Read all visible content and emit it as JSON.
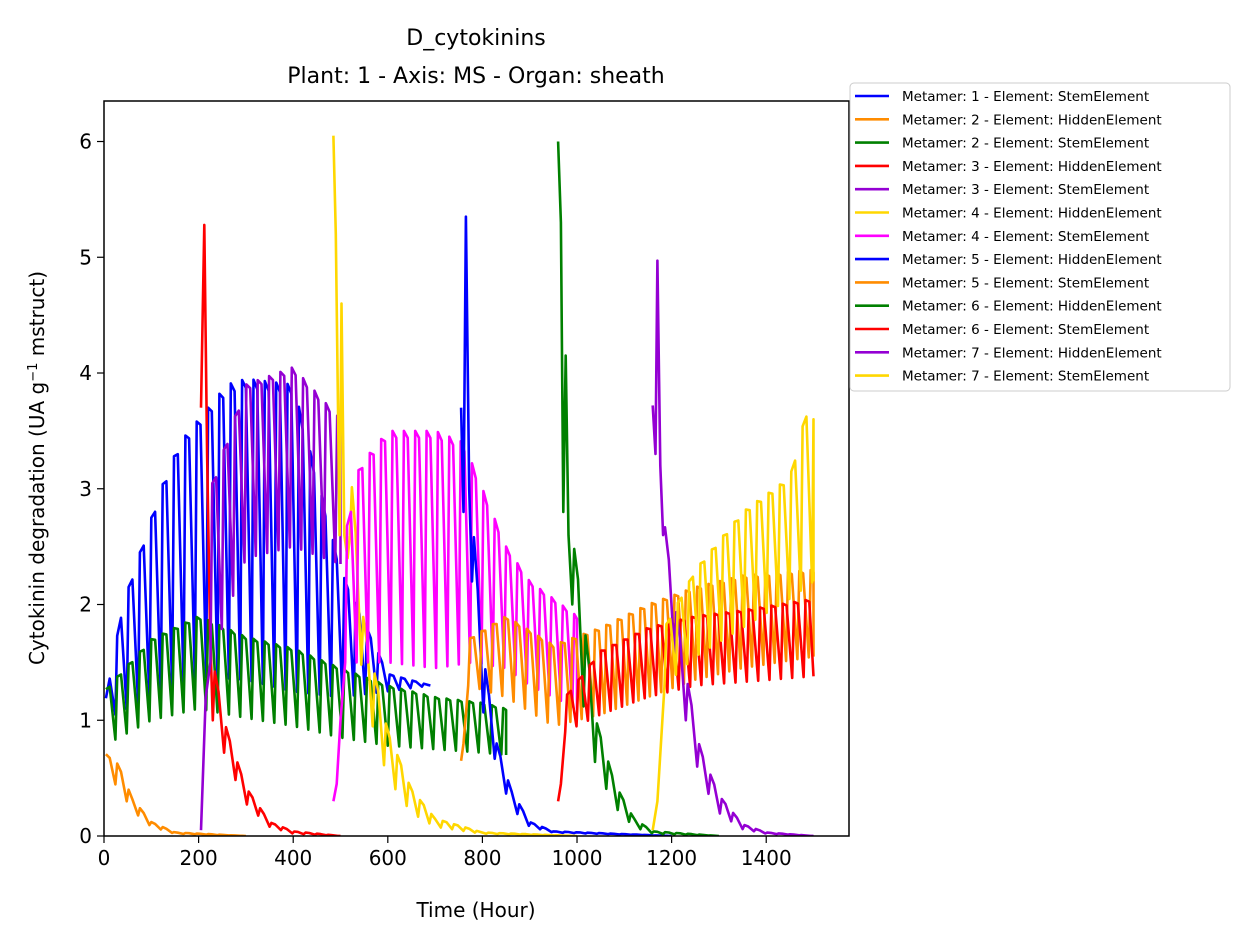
{
  "chart_data": {
    "type": "line",
    "title": "D_cytokinins",
    "subtitle": "Plant: 1 - Axis: MS - Organ: sheath",
    "xlabel": "Time (Hour)",
    "ylabel": {
      "prefix": "Cytokinin degradation (UA g",
      "sup": "−1",
      "suffix": " mstruct)"
    },
    "xlim": [
      0,
      1575
    ],
    "ylim": [
      0,
      6.35
    ],
    "xticks": [
      "0",
      "200",
      "400",
      "600",
      "800",
      "1000",
      "1200",
      "1400"
    ],
    "yticks": [
      "0",
      "1",
      "2",
      "3",
      "4",
      "5",
      "6"
    ],
    "grid": false,
    "legend_position": "outside-upper-right",
    "series": [
      {
        "name": "Metamer: 1 - Element: StemElement",
        "color": "#0000ff",
        "start": 0,
        "end": 690,
        "base": [
          [
            0,
            1.0
          ],
          [
            100,
            1.2
          ],
          [
            200,
            1.38
          ],
          [
            300,
            1.35
          ],
          [
            400,
            1.25
          ],
          [
            500,
            1.2
          ],
          [
            600,
            1.25
          ],
          [
            690,
            1.3
          ]
        ],
        "top": [
          [
            0,
            1.1
          ],
          [
            40,
            2.0
          ],
          [
            80,
            2.5
          ],
          [
            120,
            3.0
          ],
          [
            160,
            3.4
          ],
          [
            200,
            3.6
          ],
          [
            260,
            3.9
          ],
          [
            300,
            3.95
          ],
          [
            400,
            3.9
          ],
          [
            500,
            2.3
          ],
          [
            600,
            1.4
          ],
          [
            690,
            1.3
          ]
        ]
      },
      {
        "name": "Metamer: 2 - Element: HiddenElement",
        "color": "#ff8c00",
        "start": 0,
        "end": 300,
        "base": [
          [
            0,
            0.55
          ],
          [
            30,
            0.42
          ],
          [
            60,
            0.22
          ],
          [
            100,
            0.08
          ],
          [
            150,
            0.02
          ],
          [
            300,
            0
          ]
        ],
        "top": [
          [
            0,
            0.72
          ],
          [
            30,
            0.62
          ],
          [
            60,
            0.32
          ],
          [
            100,
            0.12
          ],
          [
            150,
            0.03
          ],
          [
            300,
            0
          ]
        ]
      },
      {
        "name": "Metamer: 2 - Element: StemElement",
        "color": "#008000",
        "start": 0,
        "end": 850,
        "base": [
          [
            0,
            0.78
          ],
          [
            100,
            1.0
          ],
          [
            200,
            1.1
          ],
          [
            300,
            1.02
          ],
          [
            400,
            0.95
          ],
          [
            500,
            0.85
          ],
          [
            600,
            0.78
          ],
          [
            700,
            0.75
          ],
          [
            800,
            0.72
          ],
          [
            850,
            0.7
          ]
        ],
        "top": [
          [
            0,
            1.25
          ],
          [
            100,
            1.7
          ],
          [
            200,
            1.9
          ],
          [
            300,
            1.72
          ],
          [
            400,
            1.62
          ],
          [
            500,
            1.45
          ],
          [
            600,
            1.3
          ],
          [
            700,
            1.2
          ],
          [
            800,
            1.15
          ],
          [
            850,
            1.1
          ]
        ]
      },
      {
        "name": "Metamer: 3 - Element: HiddenElement",
        "color": "#ff0000",
        "start": 205,
        "end": 500,
        "spike": [
          [
            205,
            3.7
          ],
          [
            212,
            5.28
          ],
          [
            218,
            3.3
          ],
          [
            224,
            1.8
          ],
          [
            230,
            1.0
          ]
        ],
        "base": [
          [
            230,
            1.0
          ],
          [
            260,
            0.65
          ],
          [
            300,
            0.28
          ],
          [
            350,
            0.08
          ],
          [
            400,
            0.02
          ],
          [
            500,
            0
          ]
        ],
        "top": [
          [
            230,
            1.5
          ],
          [
            260,
            0.9
          ],
          [
            300,
            0.42
          ],
          [
            350,
            0.12
          ],
          [
            400,
            0.04
          ],
          [
            500,
            0
          ]
        ]
      },
      {
        "name": "Metamer: 3 - Element: StemElement",
        "color": "#9400d3",
        "start": 205,
        "end": 500,
        "spike": [
          [
            205,
            0.05
          ],
          [
            215,
            1.2
          ],
          [
            225,
            1.5
          ]
        ],
        "base": [
          [
            225,
            1.5
          ],
          [
            300,
            2.4
          ],
          [
            400,
            2.5
          ],
          [
            500,
            2.35
          ]
        ],
        "top": [
          [
            225,
            3.0
          ],
          [
            300,
            3.9
          ],
          [
            400,
            4.05
          ],
          [
            500,
            3.6
          ]
        ]
      },
      {
        "name": "Metamer: 4 - Element: HiddenElement",
        "color": "#ffd700",
        "start": 485,
        "end": 1000,
        "spike": [
          [
            485,
            6.05
          ],
          [
            490,
            5.2
          ],
          [
            498,
            2.6
          ],
          [
            502,
            4.6
          ],
          [
            508,
            2.6
          ],
          [
            515,
            2.4
          ],
          [
            520,
            2.6
          ]
        ],
        "base": [
          [
            520,
            2.6
          ],
          [
            550,
            1.2
          ],
          [
            600,
            0.5
          ],
          [
            650,
            0.2
          ],
          [
            700,
            0.08
          ],
          [
            800,
            0.02
          ],
          [
            1000,
            0
          ]
        ],
        "top": [
          [
            520,
            3.2
          ],
          [
            550,
            1.8
          ],
          [
            600,
            0.9
          ],
          [
            650,
            0.4
          ],
          [
            700,
            0.15
          ],
          [
            800,
            0.03
          ],
          [
            1000,
            0
          ]
        ]
      },
      {
        "name": "Metamer: 4 - Element: StemElement",
        "color": "#ff00ff",
        "start": 485,
        "end": 1000,
        "spike": [
          [
            485,
            0.3
          ],
          [
            492,
            0.45
          ],
          [
            500,
            1.0
          ],
          [
            510,
            1.5
          ]
        ],
        "base": [
          [
            510,
            1.5
          ],
          [
            600,
            1.5
          ],
          [
            700,
            1.45
          ],
          [
            780,
            1.5
          ],
          [
            850,
            1.45
          ],
          [
            900,
            1.3
          ],
          [
            1000,
            1.1
          ]
        ],
        "top": [
          [
            510,
            2.6
          ],
          [
            540,
            3.2
          ],
          [
            600,
            3.5
          ],
          [
            700,
            3.5
          ],
          [
            760,
            3.4
          ],
          [
            800,
            3.0
          ],
          [
            850,
            2.5
          ],
          [
            900,
            2.2
          ],
          [
            1000,
            1.9
          ]
        ]
      },
      {
        "name": "Metamer: 5 - Element: HiddenElement",
        "color": "#0000ff",
        "start": 755,
        "end": 1200,
        "spike": [
          [
            755,
            3.7
          ],
          [
            760,
            2.8
          ],
          [
            765,
            5.35
          ],
          [
            772,
            3.0
          ],
          [
            778,
            2.2
          ]
        ],
        "base": [
          [
            778,
            2.2
          ],
          [
            800,
            1.1
          ],
          [
            830,
            0.6
          ],
          [
            860,
            0.25
          ],
          [
            900,
            0.08
          ],
          [
            950,
            0.03
          ],
          [
            1200,
            0
          ]
        ],
        "top": [
          [
            778,
            2.8
          ],
          [
            800,
            1.6
          ],
          [
            830,
            0.8
          ],
          [
            860,
            0.4
          ],
          [
            900,
            0.12
          ],
          [
            950,
            0.04
          ],
          [
            1200,
            0
          ]
        ]
      },
      {
        "name": "Metamer: 5 - Element: StemElement",
        "color": "#ff8c00",
        "start": 755,
        "end": 1500,
        "spike": [
          [
            755,
            0.65
          ],
          [
            760,
            0.8
          ],
          [
            770,
            1.3
          ]
        ],
        "base": [
          [
            770,
            1.3
          ],
          [
            850,
            1.2
          ],
          [
            950,
            0.95
          ],
          [
            1050,
            1.05
          ],
          [
            1150,
            1.2
          ],
          [
            1250,
            1.35
          ],
          [
            1350,
            1.45
          ],
          [
            1500,
            1.55
          ]
        ],
        "top": [
          [
            770,
            1.7
          ],
          [
            850,
            1.9
          ],
          [
            950,
            1.65
          ],
          [
            1050,
            1.8
          ],
          [
            1150,
            2.0
          ],
          [
            1250,
            2.15
          ],
          [
            1350,
            2.25
          ],
          [
            1500,
            2.3
          ]
        ]
      },
      {
        "name": "Metamer: 6 - Element: HiddenElement",
        "color": "#008000",
        "start": 960,
        "end": 1300,
        "spike": [
          [
            960,
            6.0
          ],
          [
            966,
            5.3
          ],
          [
            971,
            2.8
          ],
          [
            976,
            4.15
          ],
          [
            982,
            2.6
          ],
          [
            990,
            2.0
          ]
        ],
        "base": [
          [
            990,
            2.0
          ],
          [
            1010,
            1.2
          ],
          [
            1040,
            0.6
          ],
          [
            1080,
            0.25
          ],
          [
            1120,
            0.08
          ],
          [
            1160,
            0.02
          ],
          [
            1300,
            0
          ]
        ],
        "top": [
          [
            990,
            2.6
          ],
          [
            1010,
            2.0
          ],
          [
            1040,
            1.0
          ],
          [
            1080,
            0.45
          ],
          [
            1120,
            0.15
          ],
          [
            1160,
            0.04
          ],
          [
            1300,
            0
          ]
        ]
      },
      {
        "name": "Metamer: 6 - Element: StemElement",
        "color": "#ff0000",
        "start": 960,
        "end": 1500,
        "spike": [
          [
            960,
            0.3
          ],
          [
            966,
            0.45
          ],
          [
            975,
            0.9
          ]
        ],
        "base": [
          [
            975,
            0.9
          ],
          [
            1050,
            1.05
          ],
          [
            1150,
            1.2
          ],
          [
            1250,
            1.3
          ],
          [
            1350,
            1.33
          ],
          [
            1500,
            1.38
          ]
        ],
        "top": [
          [
            975,
            1.2
          ],
          [
            1050,
            1.6
          ],
          [
            1150,
            1.8
          ],
          [
            1250,
            1.9
          ],
          [
            1350,
            1.95
          ],
          [
            1500,
            2.05
          ]
        ]
      },
      {
        "name": "Metamer: 7 - Element: HiddenElement",
        "color": "#9400d3",
        "start": 1160,
        "end": 1500,
        "spike": [
          [
            1160,
            3.72
          ],
          [
            1166,
            3.3
          ],
          [
            1170,
            4.97
          ],
          [
            1176,
            3.2
          ],
          [
            1182,
            2.6
          ]
        ],
        "base": [
          [
            1182,
            2.6
          ],
          [
            1200,
            1.7
          ],
          [
            1230,
            1.0
          ],
          [
            1260,
            0.5
          ],
          [
            1300,
            0.2
          ],
          [
            1350,
            0.06
          ],
          [
            1400,
            0.02
          ],
          [
            1500,
            0
          ]
        ],
        "top": [
          [
            1182,
            2.8
          ],
          [
            1200,
            2.2
          ],
          [
            1230,
            1.4
          ],
          [
            1260,
            0.75
          ],
          [
            1300,
            0.35
          ],
          [
            1350,
            0.1
          ],
          [
            1400,
            0.03
          ],
          [
            1500,
            0
          ]
        ]
      },
      {
        "name": "Metamer: 7 - Element: StemElement",
        "color": "#ffd700",
        "start": 1160,
        "end": 1500,
        "spike": [
          [
            1160,
            0.05
          ],
          [
            1170,
            0.3
          ],
          [
            1185,
            1.3
          ]
        ],
        "base": [
          [
            1185,
            1.3
          ],
          [
            1250,
            1.55
          ],
          [
            1350,
            1.8
          ],
          [
            1450,
            2.05
          ],
          [
            1500,
            2.2
          ]
        ],
        "top": [
          [
            1185,
            1.8
          ],
          [
            1250,
            2.3
          ],
          [
            1350,
            2.8
          ],
          [
            1450,
            3.1
          ],
          [
            1490,
            3.75
          ],
          [
            1500,
            3.6
          ]
        ]
      }
    ]
  }
}
